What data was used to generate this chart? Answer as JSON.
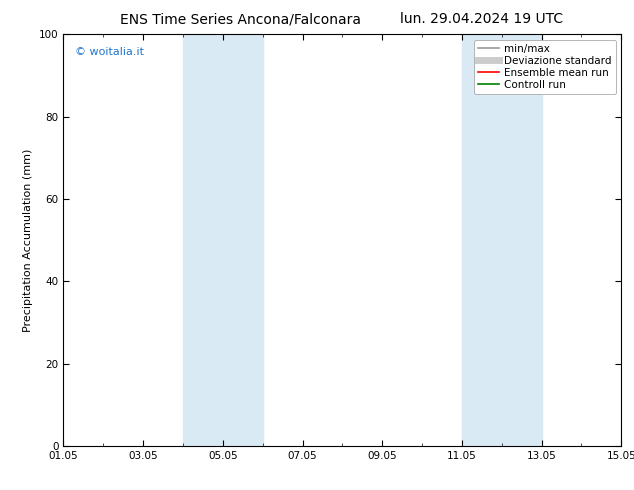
{
  "title_left": "ENS Time Series Ancona/Falconara",
  "title_right": "lun. 29.04.2024 19 UTC",
  "ylabel": "Precipitation Accumulation (mm)",
  "watermark": "© woitalia.it",
  "ylim": [
    0,
    100
  ],
  "yticks": [
    0,
    20,
    40,
    60,
    80,
    100
  ],
  "xtick_labels": [
    "01.05",
    "03.05",
    "05.05",
    "07.05",
    "09.05",
    "11.05",
    "13.05",
    "15.05"
  ],
  "xtick_days": [
    1,
    3,
    5,
    7,
    9,
    11,
    13,
    15
  ],
  "shaded_bands": [
    {
      "start_day": 4,
      "end_day": 6
    },
    {
      "start_day": 11,
      "end_day": 13
    }
  ],
  "band_color": "#daeaf5",
  "background_color": "#ffffff",
  "legend_entries": [
    {
      "label": "min/max",
      "color": "#999999",
      "lw": 1.2,
      "style": "-"
    },
    {
      "label": "Deviazione standard",
      "color": "#cccccc",
      "lw": 5,
      "style": "-"
    },
    {
      "label": "Ensemble mean run",
      "color": "#ff0000",
      "lw": 1.2,
      "style": "-"
    },
    {
      "label": "Controll run",
      "color": "#008000",
      "lw": 1.2,
      "style": "-"
    }
  ],
  "watermark_color": "#2277cc",
  "title_fontsize": 10,
  "tick_fontsize": 7.5,
  "ylabel_fontsize": 8,
  "legend_fontsize": 7.5,
  "tick_color": "#000000",
  "spine_color": "#000000"
}
